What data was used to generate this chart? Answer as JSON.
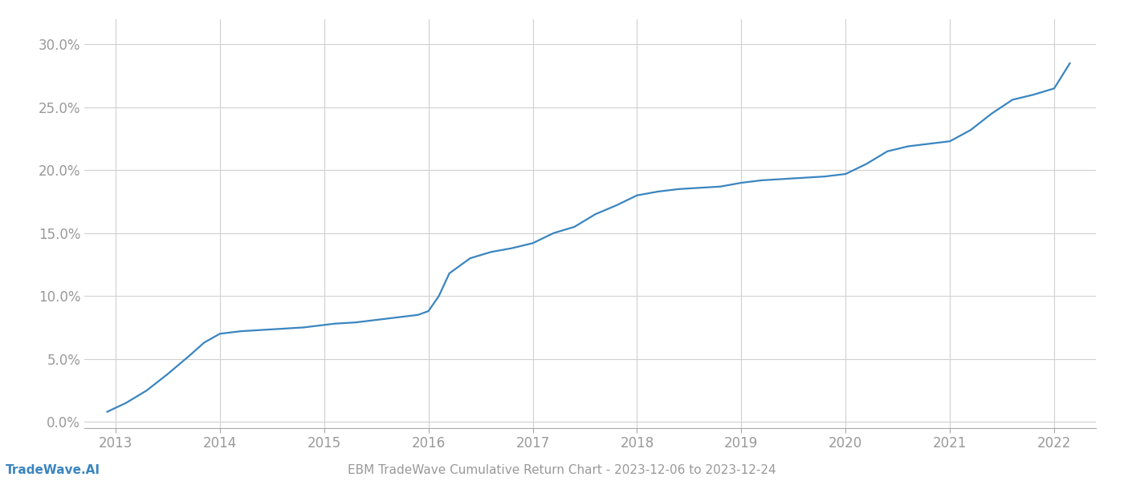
{
  "title": "EBM TradeWave Cumulative Return Chart - 2023-12-06 to 2023-12-24",
  "watermark": "TradeWave.AI",
  "line_color": "#3a85c0",
  "background_color": "#ffffff",
  "x_values": [
    2012.92,
    2013.1,
    2013.3,
    2013.5,
    2013.7,
    2013.85,
    2014.0,
    2014.2,
    2014.4,
    2014.6,
    2014.8,
    2015.0,
    2015.1,
    2015.3,
    2015.5,
    2015.7,
    2015.9,
    2016.0,
    2016.1,
    2016.2,
    2016.4,
    2016.6,
    2016.8,
    2017.0,
    2017.2,
    2017.4,
    2017.6,
    2017.8,
    2018.0,
    2018.2,
    2018.4,
    2018.6,
    2018.8,
    2019.0,
    2019.2,
    2019.4,
    2019.6,
    2019.8,
    2020.0,
    2020.2,
    2020.4,
    2020.6,
    2020.8,
    2021.0,
    2021.2,
    2021.4,
    2021.6,
    2021.8,
    2022.0,
    2022.15
  ],
  "y_values": [
    0.008,
    0.015,
    0.025,
    0.038,
    0.052,
    0.063,
    0.07,
    0.072,
    0.073,
    0.074,
    0.075,
    0.077,
    0.078,
    0.079,
    0.081,
    0.083,
    0.085,
    0.088,
    0.1,
    0.118,
    0.13,
    0.135,
    0.138,
    0.142,
    0.15,
    0.155,
    0.165,
    0.172,
    0.18,
    0.183,
    0.185,
    0.186,
    0.187,
    0.19,
    0.192,
    0.193,
    0.194,
    0.195,
    0.197,
    0.205,
    0.215,
    0.219,
    0.221,
    0.223,
    0.232,
    0.245,
    0.256,
    0.26,
    0.265,
    0.285
  ],
  "xlim": [
    2012.7,
    2022.4
  ],
  "ylim": [
    -0.005,
    0.32
  ],
  "yticks": [
    0.0,
    0.05,
    0.1,
    0.15,
    0.2,
    0.25,
    0.3
  ],
  "xticks": [
    2013,
    2014,
    2015,
    2016,
    2017,
    2018,
    2019,
    2020,
    2021,
    2022
  ],
  "grid_color": "#d0d0d0",
  "tick_color": "#999999",
  "title_fontsize": 11,
  "watermark_fontsize": 11,
  "tick_fontsize": 12,
  "line_width": 1.6
}
